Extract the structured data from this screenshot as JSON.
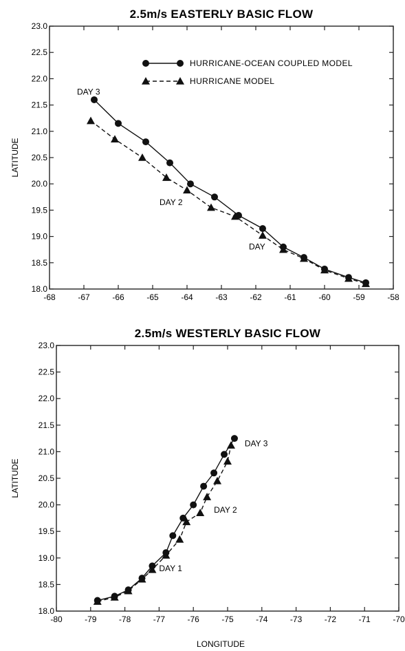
{
  "chart_data": [
    {
      "type": "line",
      "title": "2.5m/s EASTERLY BASIC FLOW",
      "xlabel": "",
      "ylabel": "LATITUDE",
      "xlim": [
        -68,
        -58
      ],
      "ylim": [
        18.0,
        23.0
      ],
      "xticks": [
        "-68",
        "-67",
        "-66",
        "-65",
        "-64",
        "-63",
        "-62",
        "-61",
        "-60",
        "-59",
        "-58"
      ],
      "yticks": [
        "18.0",
        "18.5",
        "19.0",
        "19.5",
        "20.0",
        "20.5",
        "21.0",
        "21.5",
        "22.0",
        "22.5",
        "23.0"
      ],
      "grid": false,
      "legend_position": "top-right",
      "series": [
        {
          "name": "HURRICANE-OCEAN COUPLED MODEL",
          "marker": "circle",
          "line_style": "solid",
          "points": [
            [
              -66.7,
              21.6
            ],
            [
              -66.0,
              21.15
            ],
            [
              -65.2,
              20.8
            ],
            [
              -64.5,
              20.4
            ],
            [
              -63.9,
              20.0
            ],
            [
              -63.2,
              19.75
            ],
            [
              -62.5,
              19.4
            ],
            [
              -61.8,
              19.15
            ],
            [
              -61.2,
              18.8
            ],
            [
              -60.6,
              18.6
            ],
            [
              -60.0,
              18.38
            ],
            [
              -59.3,
              18.22
            ],
            [
              -58.8,
              18.12
            ]
          ]
        },
        {
          "name": "HURRICANE MODEL",
          "marker": "triangle",
          "line_style": "dashed",
          "points": [
            [
              -66.8,
              21.2
            ],
            [
              -66.1,
              20.85
            ],
            [
              -65.3,
              20.5
            ],
            [
              -64.6,
              20.12
            ],
            [
              -64.0,
              19.88
            ],
            [
              -63.3,
              19.55
            ],
            [
              -62.6,
              19.38
            ],
            [
              -61.8,
              19.02
            ],
            [
              -61.2,
              18.75
            ],
            [
              -60.6,
              18.58
            ],
            [
              -60.0,
              18.36
            ],
            [
              -59.3,
              18.2
            ],
            [
              -58.8,
              18.1
            ]
          ]
        }
      ],
      "annotations": [
        {
          "text": "DAY 3",
          "x": -67.2,
          "y": 21.7
        },
        {
          "text": "DAY 2",
          "x": -64.8,
          "y": 19.6
        },
        {
          "text": "DAY",
          "x": -62.2,
          "y": 18.75
        }
      ]
    },
    {
      "type": "line",
      "title": "2.5m/s WESTERLY BASIC FLOW",
      "xlabel": "LONGITUDE",
      "ylabel": "LATITUDE",
      "xlim": [
        -80,
        -70
      ],
      "ylim": [
        18.0,
        23.0
      ],
      "xticks": [
        "-80",
        "-79",
        "-78",
        "-77",
        "-76",
        "-75",
        "-74",
        "-73",
        "-72",
        "-71",
        "-70"
      ],
      "yticks": [
        "18.0",
        "18.5",
        "19.0",
        "19.5",
        "20.0",
        "20.5",
        "21.0",
        "21.5",
        "22.0",
        "22.5",
        "23.0"
      ],
      "grid": false,
      "series": [
        {
          "name": "HURRICANE-OCEAN COUPLED MODEL",
          "marker": "circle",
          "line_style": "solid",
          "points": [
            [
              -78.8,
              18.2
            ],
            [
              -78.3,
              18.28
            ],
            [
              -77.9,
              18.4
            ],
            [
              -77.5,
              18.62
            ],
            [
              -77.2,
              18.85
            ],
            [
              -76.8,
              19.1
            ],
            [
              -76.6,
              19.42
            ],
            [
              -76.3,
              19.75
            ],
            [
              -76.0,
              20.0
            ],
            [
              -75.7,
              20.35
            ],
            [
              -75.4,
              20.6
            ],
            [
              -75.1,
              20.95
            ],
            [
              -74.8,
              21.25
            ]
          ]
        },
        {
          "name": "HURRICANE MODEL",
          "marker": "triangle",
          "line_style": "dashed",
          "points": [
            [
              -78.8,
              18.18
            ],
            [
              -78.3,
              18.26
            ],
            [
              -77.9,
              18.38
            ],
            [
              -77.5,
              18.6
            ],
            [
              -77.2,
              18.78
            ],
            [
              -76.8,
              19.05
            ],
            [
              -76.4,
              19.35
            ],
            [
              -76.2,
              19.68
            ],
            [
              -75.8,
              19.85
            ],
            [
              -75.6,
              20.15
            ],
            [
              -75.3,
              20.45
            ],
            [
              -75.0,
              20.82
            ],
            [
              -74.9,
              21.12
            ]
          ]
        }
      ],
      "annotations": [
        {
          "text": "DAY 3",
          "x": -74.5,
          "y": 21.1
        },
        {
          "text": "DAY 2",
          "x": -75.4,
          "y": 19.85
        },
        {
          "text": "DAY 1",
          "x": -77.0,
          "y": 18.75
        }
      ]
    }
  ]
}
